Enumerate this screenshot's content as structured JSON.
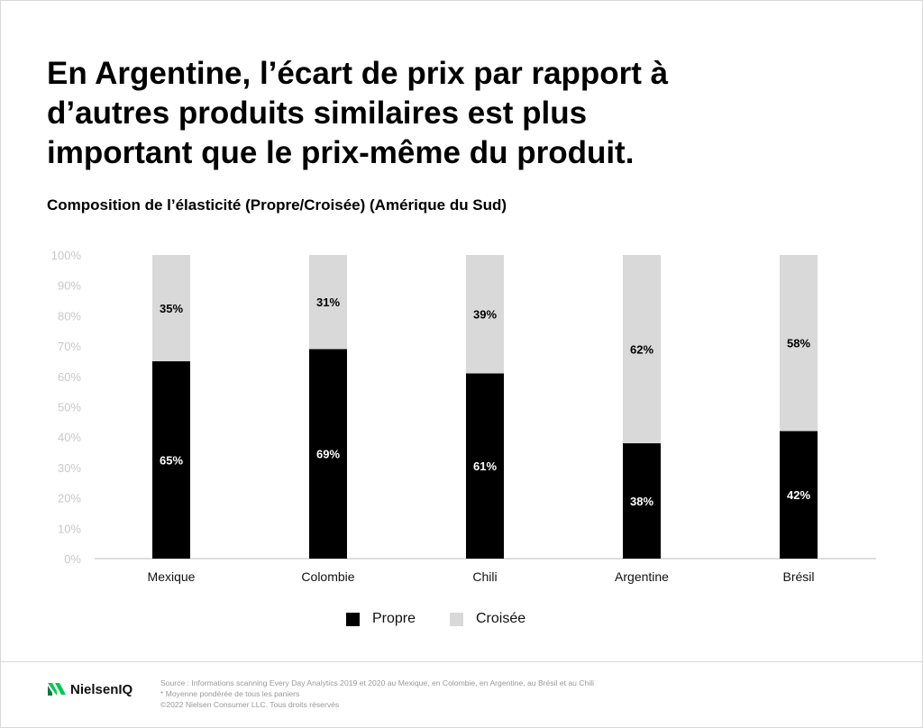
{
  "headline": {
    "line1": "En Argentine, l’écart de prix par rapport à",
    "line2": "d’autres produits similaires est plus",
    "line3": "important que le prix-même du produit."
  },
  "subtitle": "Composition de l’élasticité (Propre/Croisée) (Amérique du Sud)",
  "chart_data": {
    "type": "bar",
    "stacked": true,
    "categories": [
      "Mexique",
      "Colombie",
      "Chili",
      "Argentine",
      "Brésil"
    ],
    "series": [
      {
        "name": "Propre",
        "values": [
          65,
          69,
          61,
          38,
          42
        ],
        "labels": [
          "65%",
          "69%",
          "61%",
          "38%",
          "42%"
        ],
        "color": "#000000",
        "label_color": "#ffffff"
      },
      {
        "name": "Croisée",
        "values": [
          35,
          31,
          39,
          62,
          58
        ],
        "labels": [
          "35%",
          "31%",
          "39%",
          "62%",
          "58%"
        ],
        "color": "#d9d9d9",
        "label_color": "#000000"
      }
    ],
    "y_ticks": [
      "0%",
      "10%",
      "20%",
      "30%",
      "40%",
      "50%",
      "60%",
      "70%",
      "80%",
      "90%",
      "100%"
    ],
    "ylim": [
      0,
      100
    ],
    "grid": false,
    "legend_position": "bottom-center"
  },
  "legend": [
    {
      "name": "Propre",
      "color": "#000000"
    },
    {
      "name": "Croisée",
      "color": "#d9d9d9"
    }
  ],
  "footer": {
    "logo_text": "NielsenIQ",
    "logo_colors": [
      "#00c853",
      "#0b7a3b"
    ],
    "source_line1": "Source : Informations scanning Every Day Analytics  2019 et 2020 au Mexique, en Colombie, en Argentine, au Brésil et au Chili",
    "source_line2": "* Moyenne pondérée de tous les paniers",
    "source_line3": "©2022 Nielsen Consumer LLC. Tous droits réservés"
  }
}
